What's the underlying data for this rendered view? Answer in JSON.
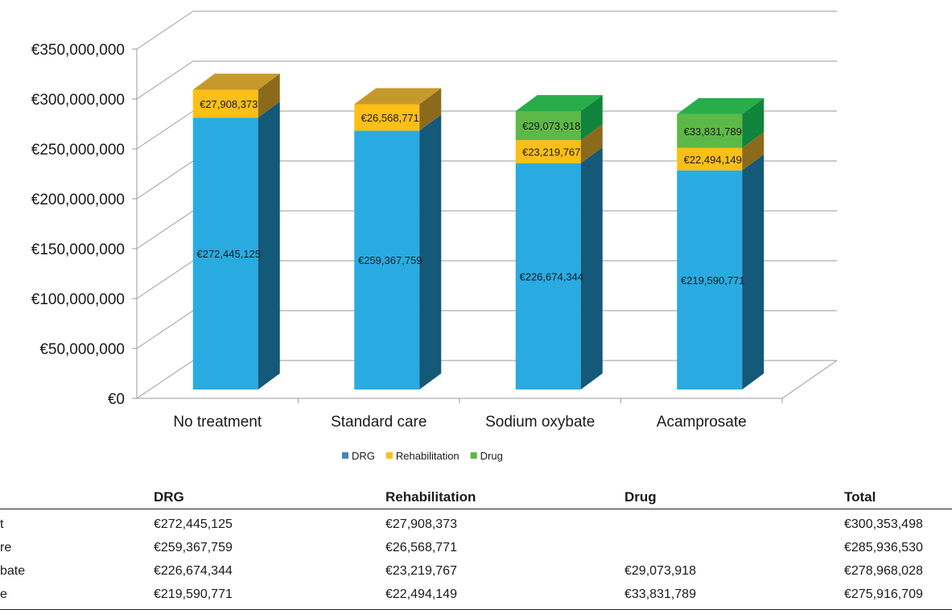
{
  "chart_data": {
    "type": "bar",
    "stacked": true,
    "three_d": true,
    "categories": [
      "No treatment",
      "Standard care",
      "Sodium oxybate",
      "Acamprosate"
    ],
    "series": [
      {
        "name": "DRG",
        "values": [
          272445125,
          259367759,
          226674344,
          219590771
        ],
        "labels": [
          "€272,445,125",
          "€259,367,759",
          "€226,674,344",
          "€219,590,771"
        ],
        "color": "#29abe2",
        "side_color": "#14587a",
        "top_color": "#1f88b6",
        "legend_color": "#4f81bd"
      },
      {
        "name": "Rehabilitation",
        "values": [
          27908373,
          26568771,
          23219767,
          22494149
        ],
        "labels": [
          "€27,908,373",
          "€26,568,771",
          "€23,219,767",
          "€22,494,149"
        ],
        "color": "#fbbf16",
        "side_color": "#8c6a1c",
        "top_color": "#c59a2a",
        "legend_color": "#fbbf16"
      },
      {
        "name": "Drug",
        "values": [
          null,
          null,
          29073918,
          33831789
        ],
        "labels": [
          "",
          "",
          "€29,073,918",
          "€33,831,789"
        ],
        "color": "#5db947",
        "side_color": "#10843c",
        "top_color": "#27ae4a",
        "legend_color": "#5db947"
      }
    ],
    "yticks": [
      "€0",
      "€50,000,000",
      "€100,000,000",
      "€150,000,000",
      "€200,000,000",
      "€250,000,000",
      "€300,000,000",
      "€350,000,000"
    ],
    "ylim": [
      0,
      350000000
    ],
    "grid": true,
    "legend_position": "bottom"
  },
  "table": {
    "headers": [
      "DRG",
      "Rehabilitation",
      "Drug",
      "Total"
    ],
    "rows": [
      {
        "label": "t",
        "drg": "€272,445,125",
        "rehab": "€27,908,373",
        "drug": "",
        "total": "€300,353,498"
      },
      {
        "label": "re",
        "drg": "€259,367,759",
        "rehab": "€26,568,771",
        "drug": "",
        "total": "€285,936,530"
      },
      {
        "label": "bate",
        "drg": "€226,674,344",
        "rehab": "€23,219,767",
        "drug": "€29,073,918",
        "total": "€278,968,028"
      },
      {
        "label": "e",
        "drg": "€219,590,771",
        "rehab": "€22,494,149",
        "drug": "€33,831,789",
        "total": "€275,916,709"
      }
    ]
  }
}
